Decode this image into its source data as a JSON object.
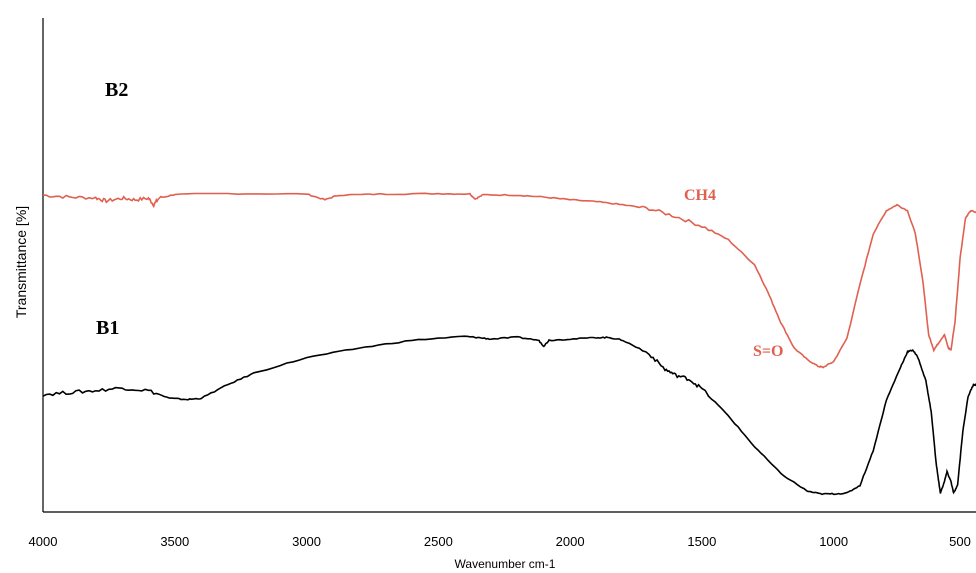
{
  "chart_data": {
    "type": "line",
    "title": "",
    "xlabel": "Wavenumber cm-1",
    "ylabel": "Transmittance [%]",
    "xlim": [
      4000,
      460
    ],
    "x_reversed": true,
    "ylim": [
      0,
      100
    ],
    "grid": false,
    "legend": "none",
    "xticks": [
      4000,
      3500,
      3000,
      2500,
      2000,
      1500,
      1000,
      500
    ],
    "series": [
      {
        "name": "B2",
        "color": "#e06050",
        "points": [
          [
            4000,
            78
          ],
          [
            3900,
            77.5
          ],
          [
            3800,
            77.3
          ],
          [
            3760,
            76.5
          ],
          [
            3700,
            77.2
          ],
          [
            3650,
            76.8
          ],
          [
            3600,
            77.2
          ],
          [
            3580,
            75.5
          ],
          [
            3560,
            77.2
          ],
          [
            3500,
            78.2
          ],
          [
            3300,
            78.4
          ],
          [
            3000,
            78.3
          ],
          [
            2930,
            76.8
          ],
          [
            2880,
            78
          ],
          [
            2700,
            78.3
          ],
          [
            2500,
            78.4
          ],
          [
            2380,
            78.3
          ],
          [
            2360,
            77
          ],
          [
            2330,
            78.1
          ],
          [
            2200,
            78
          ],
          [
            2100,
            77.5
          ],
          [
            2000,
            76.8
          ],
          [
            1900,
            76.3
          ],
          [
            1800,
            75.5
          ],
          [
            1700,
            74.5
          ],
          [
            1600,
            72.5
          ],
          [
            1500,
            70
          ],
          [
            1400,
            66.5
          ],
          [
            1300,
            60
          ],
          [
            1250,
            53
          ],
          [
            1200,
            45
          ],
          [
            1150,
            38.5
          ],
          [
            1100,
            35.5
          ],
          [
            1060,
            33.8
          ],
          [
            1040,
            33.5
          ],
          [
            1000,
            35
          ],
          [
            950,
            41
          ],
          [
            900,
            55
          ],
          [
            850,
            68
          ],
          [
            800,
            74
          ],
          [
            760,
            75.5
          ],
          [
            720,
            74
          ],
          [
            690,
            68
          ],
          [
            660,
            55
          ],
          [
            640,
            42
          ],
          [
            620,
            38
          ],
          [
            600,
            40
          ],
          [
            580,
            42
          ],
          [
            565,
            38.5
          ],
          [
            555,
            38
          ],
          [
            540,
            45
          ],
          [
            520,
            62
          ],
          [
            500,
            72
          ],
          [
            480,
            74
          ],
          [
            460,
            73.5
          ]
        ]
      },
      {
        "name": "B1",
        "color": "#000000",
        "points": [
          [
            4000,
            26.5
          ],
          [
            3900,
            27
          ],
          [
            3800,
            27.5
          ],
          [
            3700,
            28.2
          ],
          [
            3600,
            27.5
          ],
          [
            3520,
            25.5
          ],
          [
            3450,
            25.2
          ],
          [
            3400,
            25.5
          ],
          [
            3300,
            29
          ],
          [
            3200,
            32
          ],
          [
            3000,
            36
          ],
          [
            2800,
            38.5
          ],
          [
            2600,
            40.5
          ],
          [
            2400,
            41.5
          ],
          [
            2350,
            41.2
          ],
          [
            2300,
            40.8
          ],
          [
            2200,
            41.3
          ],
          [
            2120,
            40.5
          ],
          [
            2100,
            39
          ],
          [
            2080,
            40.5
          ],
          [
            2000,
            40.8
          ],
          [
            1900,
            41.2
          ],
          [
            1850,
            41.2
          ],
          [
            1800,
            40.5
          ],
          [
            1700,
            37
          ],
          [
            1640,
            33
          ],
          [
            1600,
            31.5
          ],
          [
            1550,
            30.5
          ],
          [
            1500,
            28
          ],
          [
            1400,
            21
          ],
          [
            1300,
            13
          ],
          [
            1200,
            6
          ],
          [
            1100,
            1.5
          ],
          [
            1050,
            0.8
          ],
          [
            1000,
            0.8
          ],
          [
            950,
            1
          ],
          [
            900,
            3
          ],
          [
            850,
            12
          ],
          [
            800,
            25
          ],
          [
            750,
            33
          ],
          [
            720,
            37.5
          ],
          [
            700,
            38
          ],
          [
            680,
            36
          ],
          [
            650,
            30
          ],
          [
            630,
            22
          ],
          [
            610,
            8
          ],
          [
            595,
            1
          ],
          [
            580,
            4
          ],
          [
            570,
            6.5
          ],
          [
            555,
            4
          ],
          [
            545,
            1
          ],
          [
            530,
            3
          ],
          [
            510,
            17
          ],
          [
            490,
            26
          ],
          [
            470,
            29
          ],
          [
            460,
            29
          ]
        ]
      }
    ],
    "annotations": [
      {
        "text": "CH4",
        "x": 1290,
        "y": 66,
        "color": "#e06050"
      },
      {
        "text": "S=O",
        "x": 1140,
        "y": 32,
        "color": "#e06050"
      }
    ]
  }
}
